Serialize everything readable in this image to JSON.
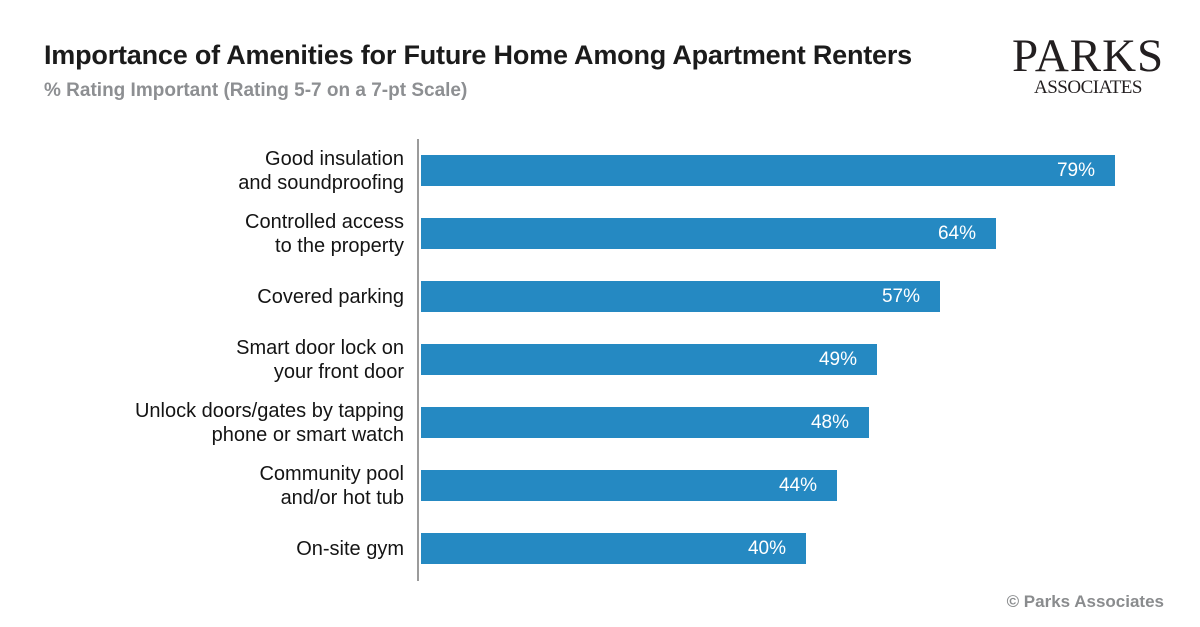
{
  "header": {
    "title": "Importance of Amenities for Future Home Among Apartment Renters",
    "subtitle": "% Rating Important (Rating 5-7 on a 7-pt Scale)"
  },
  "logo": {
    "line1": "PARKS",
    "line2": "ASSOCIATES"
  },
  "footer": {
    "copyright": "© Parks Associates"
  },
  "colors": {
    "bar": "#2589c2",
    "axis": "#9b9b9b",
    "title": "#1b1b1b",
    "subtitle": "#8d8f92",
    "value_text": "#ffffff",
    "footer": "#8a8c8e"
  },
  "chart_data": {
    "type": "bar",
    "orientation": "horizontal",
    "title": "Importance of Amenities for Future Home Among Apartment Renters",
    "subtitle": "% Rating Important (Rating 5-7 on a 7-pt Scale)",
    "unit": "%",
    "xlim": [
      0,
      100
    ],
    "grid": false,
    "legend": false,
    "value_labels_position": "inside-end",
    "categories": [
      "Good insulation and soundproofing",
      "Controlled access to the property",
      "Covered parking",
      "Smart door lock on your front door",
      "Unlock doors/gates by tapping phone or smart watch",
      "Community pool and/or hot tub",
      "On-site gym"
    ],
    "label_lines": [
      [
        "Good insulation",
        "and soundproofing"
      ],
      [
        "Controlled access",
        "to the property"
      ],
      [
        "Covered parking"
      ],
      [
        "Smart door lock on",
        "your front door"
      ],
      [
        "Unlock doors/gates by tapping",
        "phone or smart watch"
      ],
      [
        "Community pool",
        "and/or hot tub"
      ],
      [
        "On-site gym"
      ]
    ],
    "values": [
      79,
      64,
      57,
      49,
      48,
      44,
      40
    ],
    "value_labels": [
      "79%",
      "64%",
      "57%",
      "49%",
      "48%",
      "44%",
      "40%"
    ]
  }
}
